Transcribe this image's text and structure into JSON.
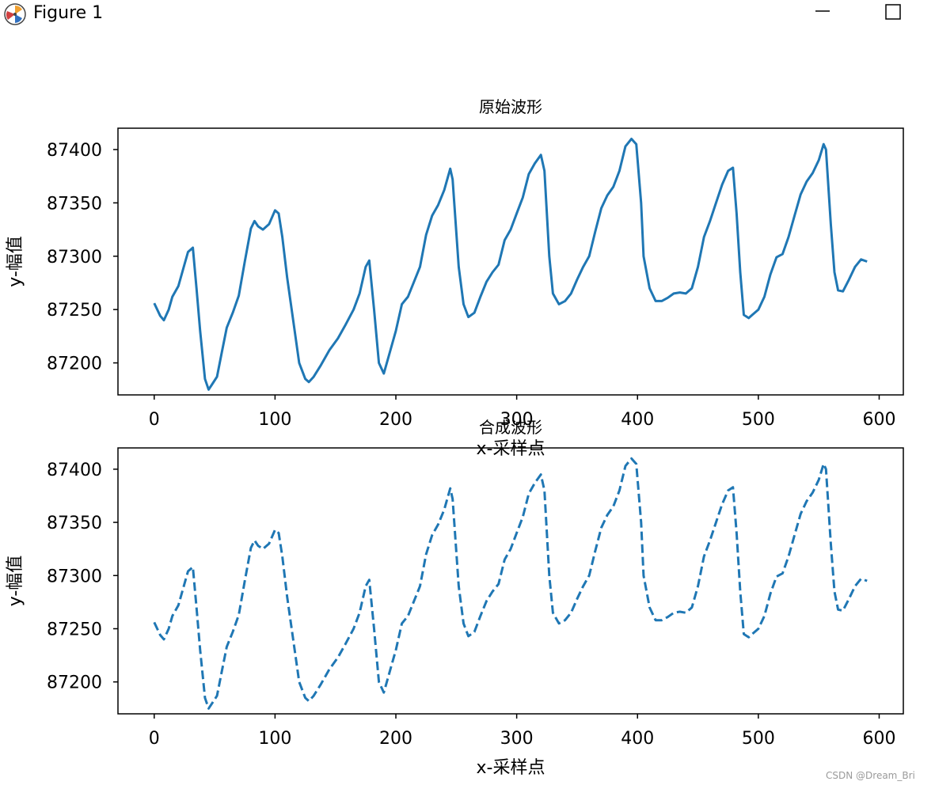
{
  "window": {
    "title": "Figure 1",
    "icons": {
      "app": "matplotlib-figure-icon",
      "minimize": "minimize-icon",
      "maximize": "maximize-icon"
    }
  },
  "watermark": "CSDN @Dream_Bri",
  "colors": {
    "line": "#1f77b4",
    "axes": "#000000",
    "background": "#ffffff"
  },
  "chart_data": [
    {
      "type": "line",
      "title": "原始波形",
      "xlabel": "x-采样点",
      "ylabel": "y-幅值",
      "line_style": "solid",
      "xlim": [
        -30,
        620
      ],
      "ylim": [
        87170,
        87420
      ],
      "xticks": [
        0,
        100,
        200,
        300,
        400,
        500,
        600
      ],
      "yticks": [
        87200,
        87250,
        87300,
        87350,
        87400
      ],
      "grid": false,
      "series": [
        {
          "x": [
            0,
            5,
            8,
            12,
            15,
            20,
            25,
            28,
            32,
            35,
            38,
            42,
            45,
            48,
            52,
            56,
            60,
            65,
            70,
            75,
            80,
            83,
            86,
            90,
            95,
            100,
            103,
            106,
            110,
            115,
            120,
            125,
            128,
            132,
            138,
            145,
            152,
            158,
            165,
            170,
            175,
            178,
            182,
            186,
            190,
            195,
            200,
            205,
            210,
            220,
            225,
            230,
            235,
            240,
            245,
            247,
            252,
            256,
            260,
            265,
            270,
            275,
            280,
            285,
            290,
            295,
            300,
            305,
            310,
            315,
            320,
            323,
            327,
            330,
            335,
            340,
            345,
            350,
            355,
            360,
            365,
            370,
            375,
            380,
            385,
            390,
            395,
            399,
            403,
            405,
            410,
            415,
            420,
            425,
            430,
            435,
            440,
            445,
            450,
            455,
            460,
            465,
            470,
            475,
            479,
            482,
            485,
            488,
            492,
            495,
            500,
            505,
            510,
            515,
            520,
            525,
            530,
            535,
            540,
            545,
            550,
            554,
            556,
            560,
            563,
            566,
            570,
            575,
            580,
            585,
            590
          ],
          "y": [
            87256,
            87244,
            87240,
            87250,
            87262,
            87272,
            87292,
            87304,
            87308,
            87270,
            87230,
            87185,
            87175,
            87180,
            87187,
            87210,
            87233,
            87247,
            87263,
            87295,
            87326,
            87333,
            87328,
            87325,
            87330,
            87343,
            87340,
            87318,
            87280,
            87240,
            87200,
            87185,
            87182,
            87187,
            87198,
            87212,
            87223,
            87235,
            87250,
            87265,
            87290,
            87296,
            87250,
            87200,
            87190,
            87210,
            87230,
            87255,
            87262,
            87290,
            87320,
            87338,
            87348,
            87362,
            87382,
            87372,
            87290,
            87255,
            87243,
            87247,
            87262,
            87276,
            87285,
            87292,
            87315,
            87325,
            87340,
            87355,
            87377,
            87387,
            87395,
            87380,
            87300,
            87265,
            87255,
            87258,
            87265,
            87278,
            87290,
            87300,
            87323,
            87345,
            87357,
            87365,
            87380,
            87403,
            87410,
            87405,
            87350,
            87300,
            87270,
            87258,
            87258,
            87261,
            87265,
            87266,
            87265,
            87270,
            87290,
            87318,
            87333,
            87350,
            87367,
            87380,
            87383,
            87340,
            87285,
            87245,
            87242,
            87245,
            87250,
            87262,
            87283,
            87299,
            87302,
            87318,
            87338,
            87358,
            87370,
            87378,
            87390,
            87405,
            87400,
            87330,
            87285,
            87268,
            87267,
            87278,
            87290,
            87297,
            87295
          ]
        }
      ]
    },
    {
      "type": "line",
      "title": "合成波形",
      "xlabel": "x-采样点",
      "ylabel": "y-幅值",
      "line_style": "dashed",
      "xlim": [
        -30,
        620
      ],
      "ylim": [
        87170,
        87420
      ],
      "xticks": [
        0,
        100,
        200,
        300,
        400,
        500,
        600
      ],
      "yticks": [
        87200,
        87250,
        87300,
        87350,
        87400
      ],
      "grid": false,
      "series": [
        {
          "x": [
            0,
            5,
            8,
            12,
            15,
            20,
            25,
            28,
            32,
            35,
            38,
            42,
            45,
            48,
            52,
            56,
            60,
            65,
            70,
            75,
            80,
            83,
            86,
            90,
            95,
            100,
            103,
            106,
            110,
            115,
            120,
            125,
            128,
            132,
            138,
            145,
            152,
            158,
            165,
            170,
            175,
            178,
            182,
            186,
            190,
            195,
            200,
            205,
            210,
            220,
            225,
            230,
            235,
            240,
            245,
            247,
            252,
            256,
            260,
            265,
            270,
            275,
            280,
            285,
            290,
            295,
            300,
            305,
            310,
            315,
            320,
            323,
            327,
            330,
            335,
            340,
            345,
            350,
            355,
            360,
            365,
            370,
            375,
            380,
            385,
            390,
            395,
            399,
            403,
            405,
            410,
            415,
            420,
            425,
            430,
            435,
            440,
            445,
            450,
            455,
            460,
            465,
            470,
            475,
            479,
            482,
            485,
            488,
            492,
            495,
            500,
            505,
            510,
            515,
            520,
            525,
            530,
            535,
            540,
            545,
            550,
            554,
            556,
            560,
            563,
            566,
            570,
            575,
            580,
            585,
            590
          ],
          "y": [
            87256,
            87244,
            87240,
            87250,
            87262,
            87272,
            87292,
            87304,
            87308,
            87270,
            87230,
            87185,
            87175,
            87180,
            87187,
            87210,
            87233,
            87247,
            87263,
            87295,
            87326,
            87333,
            87328,
            87325,
            87330,
            87343,
            87340,
            87318,
            87280,
            87240,
            87200,
            87185,
            87182,
            87187,
            87198,
            87212,
            87223,
            87235,
            87250,
            87265,
            87290,
            87296,
            87250,
            87200,
            87190,
            87210,
            87230,
            87255,
            87262,
            87290,
            87320,
            87338,
            87348,
            87362,
            87382,
            87372,
            87290,
            87255,
            87243,
            87247,
            87262,
            87276,
            87285,
            87292,
            87315,
            87325,
            87340,
            87355,
            87377,
            87387,
            87395,
            87380,
            87300,
            87265,
            87255,
            87258,
            87265,
            87278,
            87290,
            87300,
            87323,
            87345,
            87357,
            87365,
            87380,
            87403,
            87410,
            87405,
            87350,
            87300,
            87270,
            87258,
            87258,
            87261,
            87265,
            87266,
            87265,
            87270,
            87290,
            87318,
            87333,
            87350,
            87367,
            87380,
            87383,
            87340,
            87285,
            87245,
            87242,
            87245,
            87250,
            87262,
            87283,
            87299,
            87302,
            87318,
            87338,
            87358,
            87370,
            87378,
            87390,
            87405,
            87400,
            87330,
            87285,
            87268,
            87267,
            87278,
            87290,
            87297,
            87295
          ]
        }
      ]
    }
  ]
}
